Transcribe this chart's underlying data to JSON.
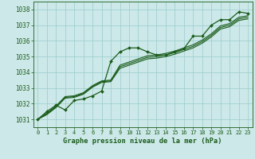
{
  "title": "Graphe pression niveau de la mer (hPa)",
  "background_color": "#cce8e8",
  "grid_color": "#99cccc",
  "line_color": "#1a5c1a",
  "text_color": "#1a5c1a",
  "xlim": [
    -0.5,
    23.5
  ],
  "ylim": [
    1030.5,
    1038.5
  ],
  "yticks": [
    1031,
    1032,
    1033,
    1034,
    1035,
    1036,
    1037,
    1038
  ],
  "xticks": [
    0,
    1,
    2,
    3,
    4,
    5,
    6,
    7,
    8,
    9,
    10,
    11,
    12,
    13,
    14,
    15,
    16,
    17,
    18,
    19,
    20,
    21,
    22,
    23
  ],
  "series1": [
    1031.0,
    1031.5,
    1031.9,
    1031.6,
    1032.2,
    1032.3,
    1032.5,
    1032.8,
    1034.7,
    1035.3,
    1035.55,
    1035.55,
    1035.3,
    1035.1,
    1035.1,
    1035.3,
    1035.5,
    1036.3,
    1036.3,
    1037.0,
    1037.35,
    1037.35,
    1037.85,
    1037.75
  ],
  "series2": [
    1031.0,
    1031.4,
    1031.85,
    1032.45,
    1032.5,
    1032.7,
    1033.15,
    1033.45,
    1033.5,
    1034.45,
    1034.65,
    1034.85,
    1035.05,
    1035.1,
    1035.2,
    1035.35,
    1035.55,
    1035.75,
    1036.05,
    1036.45,
    1036.95,
    1037.1,
    1037.5,
    1037.6
  ],
  "series3": [
    1031.0,
    1031.35,
    1031.8,
    1032.4,
    1032.45,
    1032.65,
    1033.1,
    1033.4,
    1033.45,
    1034.35,
    1034.55,
    1034.75,
    1034.95,
    1035.0,
    1035.1,
    1035.25,
    1035.45,
    1035.65,
    1035.95,
    1036.35,
    1036.85,
    1037.0,
    1037.4,
    1037.5
  ],
  "series4": [
    1031.0,
    1031.3,
    1031.75,
    1032.35,
    1032.4,
    1032.6,
    1033.05,
    1033.35,
    1033.4,
    1034.25,
    1034.45,
    1034.65,
    1034.85,
    1034.9,
    1035.0,
    1035.15,
    1035.35,
    1035.55,
    1035.85,
    1036.25,
    1036.75,
    1036.9,
    1037.3,
    1037.4
  ]
}
